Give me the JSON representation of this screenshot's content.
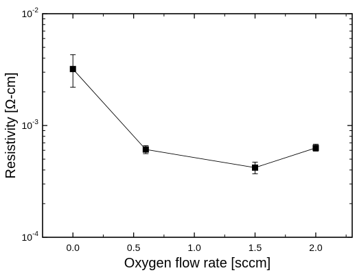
{
  "chart_data": {
    "type": "scatter",
    "title": "",
    "xlabel": "Oxygen flow rate [sccm]",
    "ylabel": "Resistivity [Ω-cm]",
    "xlim": [
      -0.25,
      2.3
    ],
    "ylim": [
      0.0001,
      0.01
    ],
    "yscale": "log",
    "grid": false,
    "x_ticks": [
      {
        "value": 0.0,
        "label": "0.0"
      },
      {
        "value": 0.5,
        "label": "0.5"
      },
      {
        "value": 1.0,
        "label": "1.0"
      },
      {
        "value": 1.5,
        "label": "1.5"
      },
      {
        "value": 2.0,
        "label": "2.0"
      }
    ],
    "y_ticks": [
      {
        "value": 0.0001,
        "base": "10",
        "exp": "-4"
      },
      {
        "value": 0.001,
        "base": "10",
        "exp": "-3"
      },
      {
        "value": 0.01,
        "base": "10",
        "exp": "-2"
      }
    ],
    "series": [
      {
        "marker": "square",
        "line": true,
        "color": "#000000",
        "x": [
          0.0,
          0.6,
          1.5,
          2.0
        ],
        "y": [
          0.0032,
          0.00061,
          0.00042,
          0.00063
        ],
        "y_err_low": [
          0.0022,
          0.00056,
          0.00037,
          0.00059
        ],
        "y_err_high": [
          0.0043,
          0.00066,
          0.00047,
          0.00068
        ]
      }
    ]
  }
}
